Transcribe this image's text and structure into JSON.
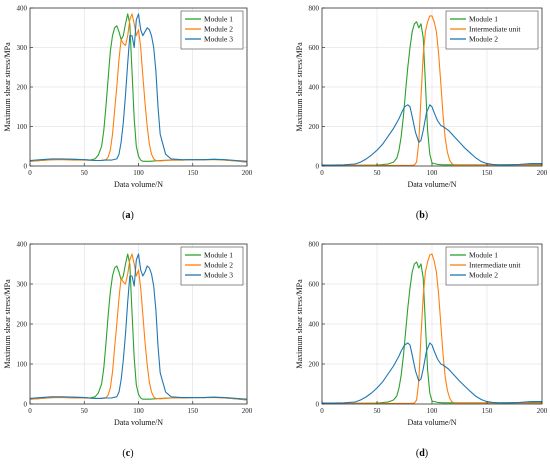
{
  "colors": {
    "module1": "#2ca02c",
    "module2": "#ff7f0e",
    "module3": "#1f77b4"
  },
  "chart_data": [
    {
      "id": "a",
      "type": "line",
      "caption": "(a)",
      "xlabel": "Data volume/N",
      "ylabel": "Maximum shear stress/MPa",
      "xlim": [
        0,
        200
      ],
      "ylim": [
        0,
        400
      ],
      "xticks": [
        0,
        50,
        100,
        150,
        200
      ],
      "yticks": [
        0,
        100,
        200,
        300,
        400
      ],
      "grid": true,
      "legend": "top-right",
      "series": [
        {
          "name": "Module 1",
          "color": "#2ca02c",
          "x": [
            0,
            10,
            20,
            30,
            40,
            50,
            55,
            60,
            63,
            66,
            68,
            70,
            72,
            74,
            76,
            78,
            80,
            82,
            84,
            86,
            88,
            90,
            92,
            94,
            96,
            98,
            100,
            102,
            104,
            106,
            110,
            115,
            120,
            130,
            140,
            150,
            160,
            170,
            180,
            190,
            200
          ],
          "y": [
            12,
            14,
            16,
            17,
            17,
            16,
            15,
            18,
            28,
            50,
            90,
            150,
            220,
            290,
            330,
            350,
            355,
            340,
            320,
            330,
            360,
            385,
            360,
            240,
            120,
            50,
            25,
            15,
            12,
            12,
            12,
            13,
            14,
            15,
            15,
            16,
            16,
            17,
            15,
            13,
            10
          ]
        },
        {
          "name": "Module 2",
          "color": "#ff7f0e",
          "x": [
            0,
            10,
            20,
            30,
            40,
            50,
            60,
            65,
            70,
            72,
            74,
            76,
            78,
            80,
            82,
            84,
            86,
            88,
            90,
            92,
            94,
            96,
            98,
            100,
            102,
            104,
            106,
            108,
            110,
            112,
            114,
            116,
            120,
            125,
            130,
            140,
            150,
            160,
            170,
            180,
            190,
            200
          ],
          "y": [
            12,
            14,
            16,
            16,
            15,
            15,
            14,
            14,
            16,
            22,
            40,
            80,
            140,
            200,
            270,
            320,
            310,
            305,
            330,
            370,
            385,
            360,
            330,
            345,
            300,
            230,
            160,
            100,
            55,
            30,
            18,
            14,
            13,
            14,
            15,
            15,
            16,
            16,
            16,
            15,
            13,
            10
          ]
        },
        {
          "name": "Module 3",
          "color": "#1f77b4",
          "x": [
            0,
            10,
            20,
            30,
            40,
            50,
            55,
            60,
            65,
            70,
            75,
            80,
            82,
            84,
            86,
            88,
            90,
            92,
            94,
            96,
            98,
            100,
            102,
            104,
            106,
            108,
            110,
            112,
            114,
            116,
            118,
            120,
            125,
            130,
            140,
            150,
            160,
            170,
            180,
            190,
            200
          ],
          "y": [
            14,
            16,
            18,
            18,
            17,
            16,
            15,
            14,
            14,
            15,
            15,
            18,
            30,
            60,
            110,
            180,
            260,
            330,
            330,
            300,
            370,
            385,
            345,
            330,
            340,
            350,
            345,
            330,
            300,
            240,
            150,
            80,
            30,
            18,
            16,
            16,
            16,
            17,
            16,
            14,
            12
          ]
        }
      ]
    },
    {
      "id": "b",
      "type": "line",
      "caption": "(b)",
      "xlabel": "Data volume/N",
      "ylabel": "Maximum shear stress/MPa",
      "xlim": [
        0,
        200
      ],
      "ylim": [
        0,
        800
      ],
      "xticks": [
        0,
        50,
        100,
        150,
        200
      ],
      "yticks": [
        0,
        200,
        400,
        600,
        800
      ],
      "grid": true,
      "legend": "top-right",
      "series": [
        {
          "name": "Module 1",
          "color": "#2ca02c",
          "x": [
            0,
            20,
            40,
            50,
            55,
            60,
            65,
            68,
            70,
            72,
            74,
            76,
            78,
            80,
            82,
            84,
            86,
            88,
            90,
            92,
            94,
            96,
            98,
            100,
            105,
            110,
            120,
            140,
            160,
            180,
            200
          ],
          "y": [
            3,
            3,
            4,
            5,
            7,
            10,
            20,
            40,
            80,
            150,
            250,
            380,
            500,
            600,
            680,
            720,
            730,
            700,
            720,
            650,
            420,
            180,
            60,
            15,
            8,
            6,
            6,
            6,
            6,
            7,
            7
          ]
        },
        {
          "name": "Intermediate unit",
          "color": "#ff7f0e",
          "x": [
            0,
            20,
            40,
            60,
            80,
            84,
            86,
            88,
            90,
            92,
            94,
            96,
            98,
            100,
            102,
            104,
            106,
            108,
            110,
            112,
            114,
            116,
            118,
            120,
            125,
            130,
            150,
            170,
            200
          ],
          "y": [
            3,
            3,
            3,
            3,
            3,
            5,
            20,
            120,
            350,
            560,
            680,
            730,
            760,
            760,
            730,
            680,
            570,
            420,
            260,
            140,
            70,
            30,
            12,
            6,
            5,
            5,
            5,
            5,
            5
          ]
        },
        {
          "name": "Module 2",
          "color": "#1f77b4",
          "x": [
            0,
            10,
            20,
            30,
            35,
            40,
            45,
            50,
            55,
            60,
            65,
            70,
            72,
            75,
            78,
            80,
            82,
            85,
            88,
            90,
            92,
            95,
            98,
            100,
            102,
            105,
            108,
            110,
            115,
            120,
            125,
            130,
            135,
            140,
            145,
            150,
            155,
            160,
            170,
            180,
            190,
            200
          ],
          "y": [
            5,
            5,
            6,
            10,
            20,
            35,
            55,
            80,
            110,
            150,
            190,
            240,
            265,
            300,
            310,
            300,
            250,
            170,
            120,
            130,
            180,
            270,
            310,
            300,
            270,
            230,
            205,
            200,
            180,
            150,
            120,
            90,
            65,
            40,
            22,
            12,
            8,
            6,
            5,
            8,
            12,
            12
          ]
        }
      ]
    },
    {
      "id": "c",
      "type": "line",
      "caption": "(c)",
      "xlabel": "Data volume/N",
      "ylabel": "Maximum shear stress/MPa",
      "xlim": [
        0,
        200
      ],
      "ylim": [
        0,
        400
      ],
      "xticks": [
        0,
        50,
        100,
        150,
        200
      ],
      "yticks": [
        0,
        100,
        200,
        300,
        400
      ],
      "grid": true,
      "legend": "top-right",
      "series": [
        {
          "name": "Module 1",
          "color": "#2ca02c",
          "x": [
            0,
            10,
            20,
            30,
            40,
            50,
            55,
            60,
            63,
            66,
            68,
            70,
            72,
            74,
            76,
            78,
            80,
            82,
            84,
            86,
            88,
            90,
            92,
            94,
            96,
            98,
            100,
            102,
            104,
            106,
            110,
            115,
            120,
            130,
            140,
            150,
            160,
            170,
            180,
            190,
            200
          ],
          "y": [
            12,
            14,
            16,
            17,
            17,
            16,
            15,
            18,
            28,
            50,
            90,
            150,
            220,
            280,
            320,
            340,
            345,
            330,
            310,
            320,
            350,
            375,
            350,
            230,
            115,
            48,
            24,
            15,
            12,
            12,
            12,
            13,
            14,
            15,
            15,
            16,
            16,
            17,
            15,
            13,
            10
          ]
        },
        {
          "name": "Module 2",
          "color": "#ff7f0e",
          "x": [
            0,
            10,
            20,
            30,
            40,
            50,
            60,
            65,
            70,
            72,
            74,
            76,
            78,
            80,
            82,
            84,
            86,
            88,
            90,
            92,
            94,
            96,
            98,
            100,
            102,
            104,
            106,
            108,
            110,
            112,
            114,
            116,
            120,
            125,
            130,
            140,
            150,
            160,
            170,
            180,
            190,
            200
          ],
          "y": [
            12,
            14,
            16,
            16,
            15,
            15,
            14,
            14,
            16,
            22,
            40,
            80,
            140,
            200,
            265,
            315,
            305,
            300,
            325,
            360,
            375,
            350,
            320,
            335,
            290,
            225,
            155,
            98,
            54,
            30,
            18,
            14,
            13,
            14,
            15,
            15,
            16,
            16,
            16,
            15,
            13,
            10
          ]
        },
        {
          "name": "Module 3",
          "color": "#1f77b4",
          "x": [
            0,
            10,
            20,
            30,
            40,
            50,
            55,
            60,
            65,
            70,
            75,
            80,
            82,
            84,
            86,
            88,
            90,
            92,
            94,
            96,
            98,
            100,
            102,
            104,
            106,
            108,
            110,
            112,
            114,
            116,
            118,
            120,
            125,
            130,
            140,
            150,
            160,
            170,
            180,
            190,
            200
          ],
          "y": [
            14,
            16,
            18,
            18,
            17,
            16,
            15,
            14,
            14,
            15,
            15,
            18,
            30,
            60,
            110,
            175,
            255,
            320,
            320,
            295,
            360,
            375,
            335,
            320,
            330,
            345,
            340,
            325,
            295,
            235,
            145,
            78,
            30,
            18,
            16,
            16,
            16,
            17,
            16,
            14,
            12
          ]
        }
      ]
    },
    {
      "id": "d",
      "type": "line",
      "caption": "(d)",
      "xlabel": "Data volume/N",
      "ylabel": "Maximum shear stress/MPa",
      "xlim": [
        0,
        200
      ],
      "ylim": [
        0,
        800
      ],
      "xticks": [
        0,
        50,
        100,
        150,
        200
      ],
      "yticks": [
        0,
        200,
        400,
        600,
        800
      ],
      "grid": true,
      "legend": "top-right",
      "series": [
        {
          "name": "Module 1",
          "color": "#2ca02c",
          "x": [
            0,
            20,
            40,
            50,
            55,
            60,
            65,
            68,
            70,
            72,
            74,
            76,
            78,
            80,
            82,
            84,
            86,
            88,
            90,
            92,
            94,
            96,
            98,
            100,
            105,
            110,
            120,
            140,
            160,
            180,
            200
          ],
          "y": [
            3,
            3,
            4,
            5,
            7,
            10,
            20,
            40,
            80,
            145,
            240,
            360,
            480,
            580,
            660,
            700,
            710,
            680,
            700,
            630,
            400,
            170,
            55,
            15,
            8,
            6,
            6,
            6,
            6,
            7,
            7
          ]
        },
        {
          "name": "Intermediate unit",
          "color": "#ff7f0e",
          "x": [
            0,
            20,
            40,
            60,
            80,
            84,
            86,
            88,
            90,
            92,
            94,
            96,
            98,
            100,
            102,
            104,
            106,
            108,
            110,
            112,
            114,
            116,
            118,
            120,
            125,
            130,
            150,
            170,
            200
          ],
          "y": [
            3,
            3,
            3,
            3,
            3,
            5,
            20,
            115,
            340,
            540,
            660,
            710,
            745,
            750,
            715,
            660,
            550,
            400,
            250,
            135,
            68,
            30,
            12,
            6,
            5,
            5,
            5,
            5,
            5
          ]
        },
        {
          "name": "Module 2",
          "color": "#1f77b4",
          "x": [
            0,
            10,
            20,
            30,
            35,
            40,
            45,
            50,
            55,
            60,
            65,
            70,
            72,
            75,
            78,
            80,
            82,
            85,
            88,
            90,
            92,
            95,
            98,
            100,
            102,
            105,
            108,
            110,
            115,
            120,
            125,
            130,
            135,
            140,
            145,
            150,
            155,
            160,
            170,
            180,
            190,
            200
          ],
          "y": [
            5,
            5,
            6,
            10,
            20,
            35,
            55,
            80,
            110,
            150,
            190,
            240,
            265,
            295,
            305,
            295,
            245,
            165,
            115,
            125,
            175,
            265,
            305,
            295,
            265,
            225,
            200,
            195,
            175,
            145,
            115,
            88,
            62,
            38,
            22,
            12,
            8,
            6,
            5,
            8,
            12,
            12
          ]
        }
      ]
    }
  ]
}
